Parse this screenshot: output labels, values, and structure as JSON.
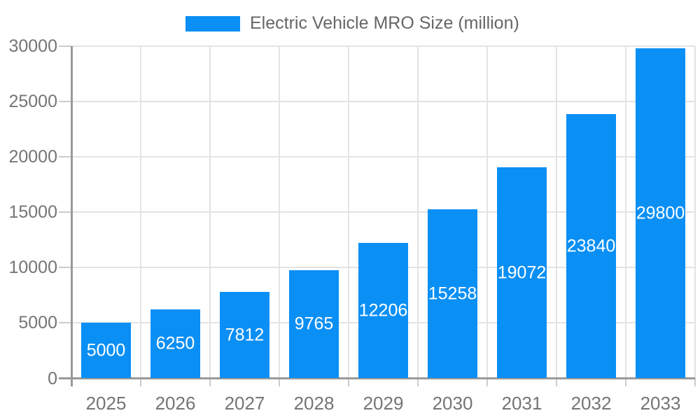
{
  "chart_data": {
    "type": "bar",
    "title": "Electric Vehicle MRO Size (million)",
    "legend_entries": [
      "Electric Vehicle MRO Size (million)"
    ],
    "legend_position": "top-center",
    "categories": [
      "2025",
      "2026",
      "2027",
      "2028",
      "2029",
      "2030",
      "2031",
      "2032",
      "2033"
    ],
    "series": [
      {
        "name": "Electric Vehicle MRO Size (million)",
        "values": [
          5000,
          6250,
          7812,
          9765,
          12206,
          15258,
          19072,
          23840,
          29800
        ]
      }
    ],
    "value_labels": [
      "5000",
      "6250",
      "7812",
      "9765",
      "12206",
      "15258",
      "19072",
      "23840",
      "29800"
    ],
    "value_label_position": "inside-center",
    "xlabel": "",
    "ylabel": "",
    "ylim": [
      0,
      30000
    ],
    "ytick_step": 5000,
    "ytick_labels": [
      "0",
      "5000",
      "10000",
      "15000",
      "20000",
      "25000",
      "30000"
    ],
    "grid": true
  },
  "colors": {
    "bar": "#0a8ff5",
    "value_label": "#ffffff",
    "gridline": "#e3e3e3",
    "axis_line": "#999999",
    "tick": "#cccccc",
    "axis_label": "#757575",
    "legend_text": "#666666",
    "background": "#ffffff"
  }
}
